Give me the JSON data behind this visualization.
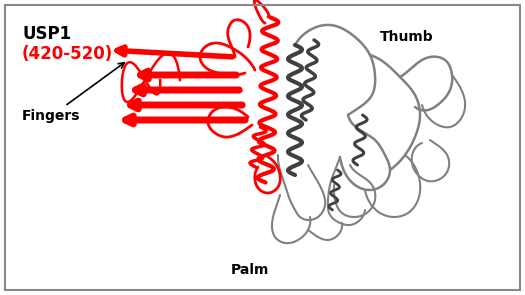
{
  "title_line1": "USP1",
  "title_line2": "(420-520)",
  "title_line1_color": "#000000",
  "title_line2_color": "#ff0000",
  "label_thumb": "Thumb",
  "label_fingers": "Fingers",
  "label_palm": "Palm",
  "label_fontsize": 10,
  "title_fontsize_line1": 12,
  "title_fontsize_line2": 12,
  "bg_color": "#ffffff",
  "border_color": "#888888",
  "fig_width": 5.25,
  "fig_height": 2.95,
  "dpi": 100,
  "red_color": "#ff0000",
  "gray_color": "#808080",
  "dark_gray": "#404040"
}
